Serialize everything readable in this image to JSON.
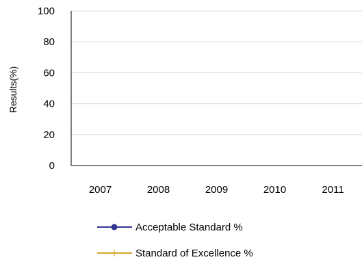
{
  "chart_data": {
    "type": "line",
    "title": "",
    "xlabel": "",
    "ylabel": "Results(%)",
    "categories": [
      "2007",
      "2008",
      "2009",
      "2010",
      "2011"
    ],
    "ylim": [
      0,
      100
    ],
    "yticks": [
      "0",
      "20",
      "40",
      "60",
      "80",
      "100"
    ],
    "grid": true,
    "legend_position": "bottom",
    "series": [
      {
        "name": "Acceptable Standard %",
        "color": "#33348f",
        "marker": "circle",
        "values": [
          null,
          null,
          null,
          null,
          null
        ]
      },
      {
        "name": "Standard of Excellence %",
        "color": "#d4a62a",
        "marker": "plus",
        "values": [
          null,
          null,
          null,
          null,
          null
        ]
      }
    ]
  }
}
